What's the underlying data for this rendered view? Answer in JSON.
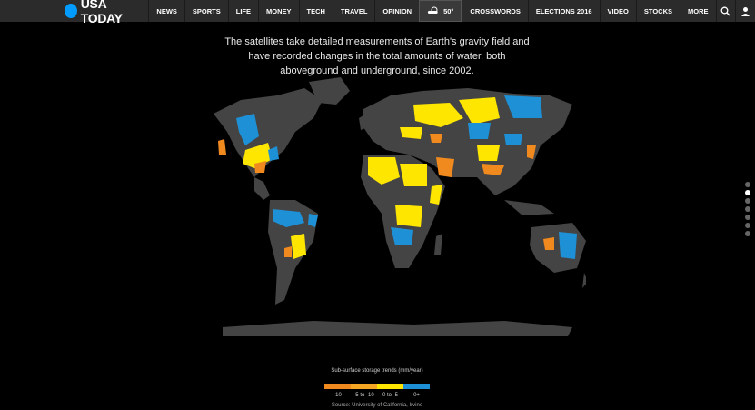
{
  "brand": {
    "name": "USA TODAY"
  },
  "nav": {
    "items": [
      "NEWS",
      "SPORTS",
      "LIFE",
      "MONEY",
      "TECH",
      "TRAVEL",
      "OPINION"
    ],
    "weather": "50°",
    "items_after": [
      "CROSSWORDS",
      "ELECTIONS 2016",
      "VIDEO",
      "STOCKS",
      "MORE"
    ]
  },
  "lead_text": "The satellites take detailed measurements of Earth's gravity field and have recorded changes in the total amounts of water, both aboveground and underground, since 2002.",
  "legend": {
    "title": "Sub-surface storage trends (mm/year)",
    "labels": [
      "-10",
      "-5 to -10",
      "0 to -5",
      "0+"
    ],
    "colors": [
      "#f08a1e",
      "#f5a623",
      "#ffe600",
      "#1e90d6"
    ]
  },
  "source": "Source: University of California, Irvine",
  "colors": {
    "land": "#444444",
    "background": "#000000",
    "nav": "#2b2b2b",
    "brand_dot": "#009bff"
  },
  "pager": {
    "count": 7,
    "active_index": 1
  }
}
